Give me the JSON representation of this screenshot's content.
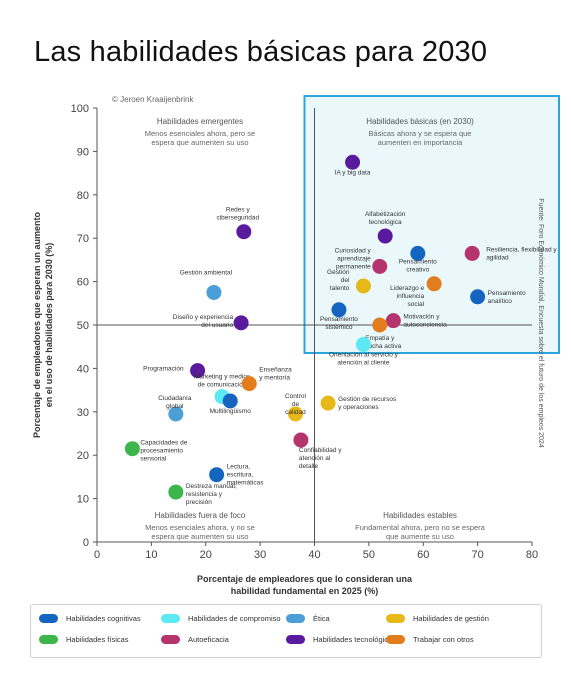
{
  "page": {
    "title": "Las habilidades básicas para 2030"
  },
  "chart_data": {
    "type": "scatter",
    "copyright": "© Jeroen Kraaijenbrink",
    "source": "Fuente: Foro Económico Mundial, Encuesta sobre el futuro de los empleos 2024",
    "xlabel": "Porcentaje de empleadores que lo consideran una habilidad fundamental en 2025 (%)",
    "ylabel": "Porcentaje de empleadores que esperan un aumento en el uso de habilidades para 2030 (%)",
    "xlim": [
      0,
      80
    ],
    "ylim": [
      0,
      100
    ],
    "xticks": [
      0,
      10,
      20,
      30,
      40,
      50,
      60,
      70,
      80
    ],
    "yticks": [
      0,
      10,
      20,
      30,
      40,
      50,
      60,
      70,
      80,
      90,
      100
    ],
    "dividers": {
      "x": 40,
      "y": 50
    },
    "highlight_quadrant": "top-right",
    "quadrants": [
      {
        "title": "Habilidades emergentes",
        "subtitle": "Menos esenciales ahora, pero se espera que aumenten su uso"
      },
      {
        "title": "Habilidades básicas (en 2030)",
        "subtitle": "Básicas ahora y se espera que aumenten en importancia"
      },
      {
        "title": "Habilidades fuera de foco",
        "subtitle": "Menos esenciales ahora, y no se espera que aumenten su uso"
      },
      {
        "title": "Habilidades estables",
        "subtitle": "Fundamental ahora, pero no se espera que aumente su uso"
      }
    ],
    "categories": [
      {
        "name": "Habilidades cognitivas",
        "color": "#1565c0"
      },
      {
        "name": "Habilidades de compromiso",
        "color": "#5ce8f5"
      },
      {
        "name": "Ética",
        "color": "#4a9fd6"
      },
      {
        "name": "Habilidades de gestión",
        "color": "#e6b818"
      },
      {
        "name": "Habilidades físicas",
        "color": "#3cb54a"
      },
      {
        "name": "Autoeficacia",
        "color": "#b5346e"
      },
      {
        "name": "Habilidades tecnológicas",
        "color": "#5a1a9e"
      },
      {
        "name": "Trabajar con otros",
        "color": "#e17d1c"
      }
    ],
    "points": [
      {
        "label": "IA y big data",
        "x": 47,
        "y": 87.5,
        "cat": 6
      },
      {
        "label": "Redes y ciberseguridad",
        "x": 27,
        "y": 71.5,
        "cat": 6
      },
      {
        "label": "Alfabetización tecnológica",
        "x": 53,
        "y": 70.5,
        "cat": 6
      },
      {
        "label": "Diseño y experiencia del usuario",
        "x": 26.5,
        "y": 50.5,
        "cat": 6
      },
      {
        "label": "Programación",
        "x": 18.5,
        "y": 39.5,
        "cat": 6
      },
      {
        "label": "Pensamiento creativo",
        "x": 59,
        "y": 66.5,
        "cat": 0
      },
      {
        "label": "Resiliencia, flexibilidad y agilidad",
        "x": 69,
        "y": 66.5,
        "cat": 5
      },
      {
        "label": "Curiosidad y aprendizaje permanente",
        "x": 52,
        "y": 63.5,
        "cat": 5
      },
      {
        "label": "Gestión del talento",
        "x": 49,
        "y": 59,
        "cat": 3
      },
      {
        "label": "Liderazgo e influencia social",
        "x": 62,
        "y": 59.5,
        "cat": 7
      },
      {
        "label": "Pensamiento analítico",
        "x": 70,
        "y": 56.5,
        "cat": 0
      },
      {
        "label": "Pensamiento sistémico",
        "x": 44.5,
        "y": 53.5,
        "cat": 0
      },
      {
        "label": "Motivación y autoconciencia",
        "x": 54.5,
        "y": 51,
        "cat": 5
      },
      {
        "label": "Empatía y escucha activa",
        "x": 52,
        "y": 50,
        "cat": 7
      },
      {
        "label": "Orientación al servicio y atención al cliente",
        "x": 49,
        "y": 45.5,
        "cat": 1
      },
      {
        "label": "Gestión ambiental",
        "x": 21.5,
        "y": 57.5,
        "cat": 2
      },
      {
        "label": "Marketing y medios de comunicación",
        "x": 23,
        "y": 33.5,
        "cat": 1
      },
      {
        "label": "Multilingüismo",
        "x": 24.5,
        "y": 32.5,
        "cat": 0
      },
      {
        "label": "Enseñanza y mentoría",
        "x": 28,
        "y": 36.5,
        "cat": 7
      },
      {
        "label": "Ciudadanía global",
        "x": 14.5,
        "y": 29.5,
        "cat": 2
      },
      {
        "label": "Control de calidad",
        "x": 36.5,
        "y": 29.5,
        "cat": 3
      },
      {
        "label": "Gestión de recursos y operaciones",
        "x": 42.5,
        "y": 32,
        "cat": 3
      },
      {
        "label": "Confiabilidad y atención al detalle",
        "x": 37.5,
        "y": 23.5,
        "cat": 5
      },
      {
        "label": "Capacidades de procesamiento sensorial",
        "x": 6.5,
        "y": 21.5,
        "cat": 4
      },
      {
        "label": "Lectura, escritura, matemáticas",
        "x": 22,
        "y": 15.5,
        "cat": 0
      },
      {
        "label": "Destreza manual, resistencia y precisión",
        "x": 14.5,
        "y": 11.5,
        "cat": 4
      }
    ]
  }
}
